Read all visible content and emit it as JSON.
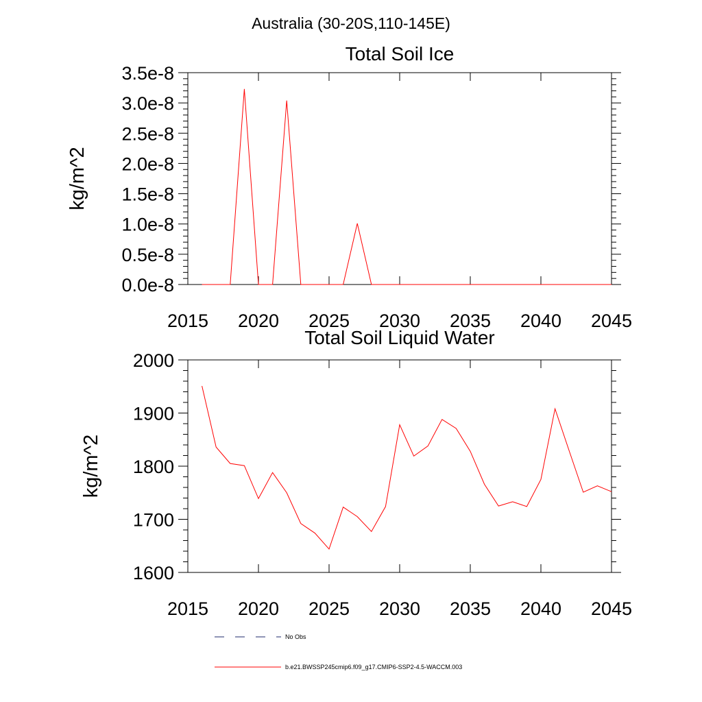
{
  "figure": {
    "title": "Australia (30-20S,110-145E)"
  },
  "colors": {
    "series": "#ff0000",
    "obs": "#1f2a6b",
    "axis": "#000000"
  },
  "chart_data": [
    {
      "type": "line",
      "title": "Total Soil Ice",
      "xlabel": "",
      "ylabel": "kg/m^2",
      "xlim": [
        2015,
        2045
      ],
      "ylim": [
        0.0,
        3.5e-08
      ],
      "xticks": [
        2015,
        2020,
        2025,
        2030,
        2035,
        2040,
        2045
      ],
      "yticks": [
        0.0,
        5e-09,
        1e-08,
        1.5e-08,
        2e-08,
        2.5e-08,
        3e-08,
        3.5e-08
      ],
      "xtick_labels": [
        "2015",
        "2020",
        "2025",
        "2030",
        "2035",
        "2040",
        "2045"
      ],
      "ytick_labels": [
        "0.0e-8",
        "0.5e-8",
        "1.0e-8",
        "1.5e-8",
        "2.0e-8",
        "2.5e-8",
        "3.0e-8",
        "3.5e-8"
      ],
      "series": [
        {
          "name": "b.e21.BWSSP245cmip6.f09_g17.CMIP6-SSP2-4.5-WACCM.003",
          "x": [
            2016,
            2017,
            2018,
            2019,
            2020,
            2021,
            2022,
            2023,
            2024,
            2025,
            2026,
            2027,
            2028,
            2029,
            2030,
            2031,
            2032,
            2033,
            2034,
            2035,
            2036,
            2037,
            2038,
            2039,
            2040,
            2041,
            2042,
            2043,
            2044,
            2045
          ],
          "y": [
            0,
            0,
            0,
            3.23e-08,
            0,
            0,
            3.04e-08,
            0,
            0,
            0,
            0,
            1.01e-08,
            0,
            0,
            0,
            0,
            0,
            0,
            0,
            0,
            0,
            0,
            0,
            0,
            0,
            0,
            0,
            0,
            0,
            0
          ]
        }
      ]
    },
    {
      "type": "line",
      "title": "Total Soil Liquid Water",
      "xlabel": "",
      "ylabel": "kg/m^2",
      "xlim": [
        2015,
        2045
      ],
      "ylim": [
        1600,
        2000
      ],
      "xticks": [
        2015,
        2020,
        2025,
        2030,
        2035,
        2040,
        2045
      ],
      "yticks": [
        1600,
        1700,
        1800,
        1900,
        2000
      ],
      "xtick_labels": [
        "2015",
        "2020",
        "2025",
        "2030",
        "2035",
        "2040",
        "2045"
      ],
      "ytick_labels": [
        "1600",
        "1700",
        "1800",
        "1900",
        "2000"
      ],
      "series": [
        {
          "name": "b.e21.BWSSP245cmip6.f09_g17.CMIP6-SSP2-4.5-WACCM.003",
          "x": [
            2016,
            2017,
            2018,
            2019,
            2020,
            2021,
            2022,
            2023,
            2024,
            2025,
            2026,
            2027,
            2028,
            2029,
            2030,
            2031,
            2032,
            2033,
            2034,
            2035,
            2036,
            2037,
            2038,
            2039,
            2040,
            2041,
            2042,
            2043,
            2044,
            2045
          ],
          "y": [
            1951,
            1836,
            1805,
            1801,
            1739,
            1788,
            1750,
            1692,
            1674,
            1644,
            1723,
            1705,
            1677,
            1724,
            1878,
            1819,
            1838,
            1888,
            1871,
            1828,
            1766,
            1725,
            1733,
            1724,
            1775,
            1908,
            1829,
            1751,
            1763,
            1752
          ]
        }
      ]
    }
  ],
  "legend": {
    "entries": [
      {
        "label": "No Obs",
        "style": "dashed",
        "color": "#1f2a6b"
      },
      {
        "label": "b.e21.BWSSP245cmip6.f09_g17.CMIP6-SSP2-4.5-WACCM.003",
        "style": "solid",
        "color": "#ff0000"
      }
    ]
  }
}
